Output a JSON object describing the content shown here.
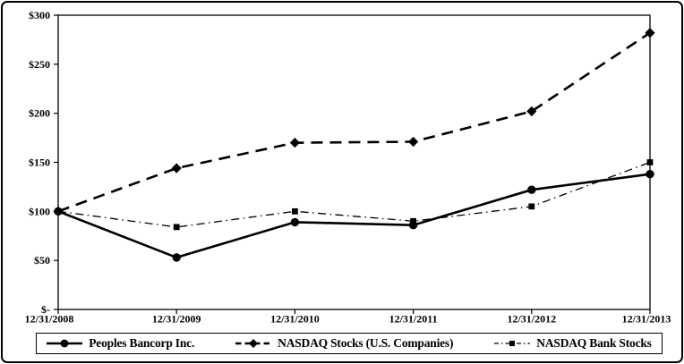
{
  "chart_data": {
    "type": "line",
    "title": "",
    "xlabel": "",
    "ylabel": "",
    "categories": [
      "12/31/2008",
      "12/31/2009",
      "12/31/2010",
      "12/31/2011",
      "12/31/2012",
      "12/31/2013"
    ],
    "series": [
      {
        "name": "Peoples Bancorp Inc.",
        "values": [
          100,
          53,
          89,
          86,
          122,
          138
        ],
        "line_style": "solid",
        "marker": "circle"
      },
      {
        "name": "NASDAQ Stocks (U.S. Companies)",
        "values": [
          100,
          144,
          170,
          171,
          202,
          282
        ],
        "line_style": "dashed",
        "marker": "diamond"
      },
      {
        "name": "NASDAQ Bank Stocks",
        "values": [
          100,
          84,
          100,
          90,
          105,
          150
        ],
        "line_style": "dashdot",
        "marker": "square"
      }
    ],
    "yticks": [
      {
        "label": "$-",
        "value": 0
      },
      {
        "label": "$50",
        "value": 50
      },
      {
        "label": "$100",
        "value": 100
      },
      {
        "label": "$150",
        "value": 150
      },
      {
        "label": "$200",
        "value": 200
      },
      {
        "label": "$250",
        "value": 250
      },
      {
        "label": "$300",
        "value": 300
      }
    ],
    "ylim": [
      0,
      300
    ],
    "grid": false,
    "legend_position": "bottom",
    "color": "#000000",
    "background": "#ffffff"
  }
}
